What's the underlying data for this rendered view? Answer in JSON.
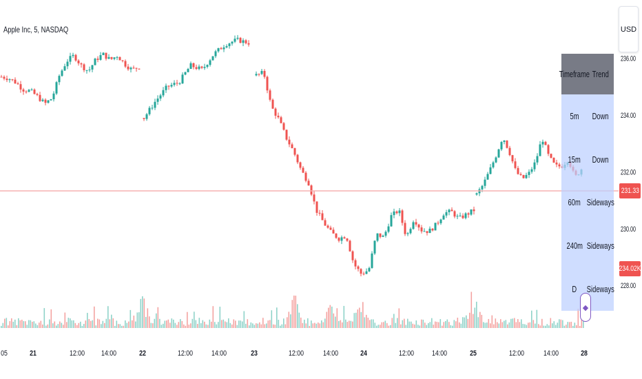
{
  "header": {
    "symbol": "Apple Inc, 5, NASDAQ"
  },
  "currency": "USD",
  "colors": {
    "up": "#26a69a",
    "down": "#ef5350",
    "price_line": "#f5b2b2",
    "table_header": "#787b86",
    "table_body": "#c5d6ff",
    "marker": "#7e57c2"
  },
  "price_labels": {
    "last_price": "231.33",
    "volume": "234.02K"
  },
  "trend_table": {
    "headers": [
      "Timeframe",
      "Trend"
    ],
    "rows": [
      {
        "timeframe": "5m",
        "trend": "Down"
      },
      {
        "timeframe": "15m",
        "trend": "Down"
      },
      {
        "timeframe": "60m",
        "trend": "Sideways"
      },
      {
        "timeframe": "240m",
        "trend": "Sideways"
      },
      {
        "timeframe": "D",
        "trend": "Sideways"
      }
    ]
  },
  "marker_icon": "diamond-icon",
  "chart_data": {
    "type": "candlestick",
    "title": "Apple Inc, 5, NASDAQ",
    "y_axis": {
      "ticks": [
        {
          "value": 236,
          "label": "236.00"
        },
        {
          "value": 234,
          "label": "234.00"
        },
        {
          "value": 232,
          "label": "232.00"
        },
        {
          "value": 230,
          "label": "230.00"
        },
        {
          "value": 228,
          "label": "228.00"
        }
      ],
      "range": [
        227.25,
        236.6
      ]
    },
    "x_axis": {
      "ticks": [
        "05",
        "21",
        "12:00",
        "14:00",
        "22",
        "12:00",
        "14:00",
        "23",
        "12:00",
        "14:00",
        "24",
        "12:00",
        "14:00",
        "25",
        "12:00",
        "14:00",
        "28"
      ],
      "bold_ticks": [
        "21",
        "22",
        "23",
        "24",
        "25",
        "28"
      ]
    },
    "last_price": 231.33,
    "series": [
      {
        "name": "Price",
        "segments": [
          [
            235.35,
            235.3,
            235.15,
            234.9,
            234.85,
            234.65,
            234.4,
            234.6,
            235.4,
            235.9,
            236.1,
            235.75,
            235.55,
            235.95,
            236.15,
            235.95,
            236.1,
            235.8,
            235.6,
            235.7
          ],
          [
            233.9,
            234.5,
            235.0,
            235.15,
            235.75,
            235.6,
            236.15,
            236.5,
            236.65,
            236.55
          ],
          [
            235.4,
            235.5,
            234.3,
            233.85,
            233.2,
            232.7,
            232.05,
            231.6,
            230.65,
            230.2,
            229.85,
            229.65,
            229.75,
            228.75,
            228.4,
            228.55,
            229.8,
            229.7,
            230.45,
            230.65,
            229.7,
            230.35,
            229.95,
            229.9,
            230.15,
            230.55,
            230.6,
            230.35,
            230.5,
            230.65
          ],
          [
            231.2,
            231.55,
            232.05,
            232.6,
            233.25,
            232.7,
            232.0,
            231.75,
            231.95,
            232.35,
            233.2,
            232.55,
            232.2,
            232.2,
            232.45,
            231.8,
            232.1
          ]
        ]
      }
    ],
    "volume_series": {
      "name": "Volume",
      "spikes": [
        {
          "x_tick": "22",
          "value": 3
        },
        {
          "x_tick": "12:00",
          "value": 3.2
        },
        {
          "x_tick": "14:00",
          "value": 1.9
        },
        {
          "x_tick": "24",
          "value": 2.1
        },
        {
          "x_tick": "25",
          "value": 2.2
        }
      ]
    },
    "grid": false,
    "legend": "none"
  }
}
